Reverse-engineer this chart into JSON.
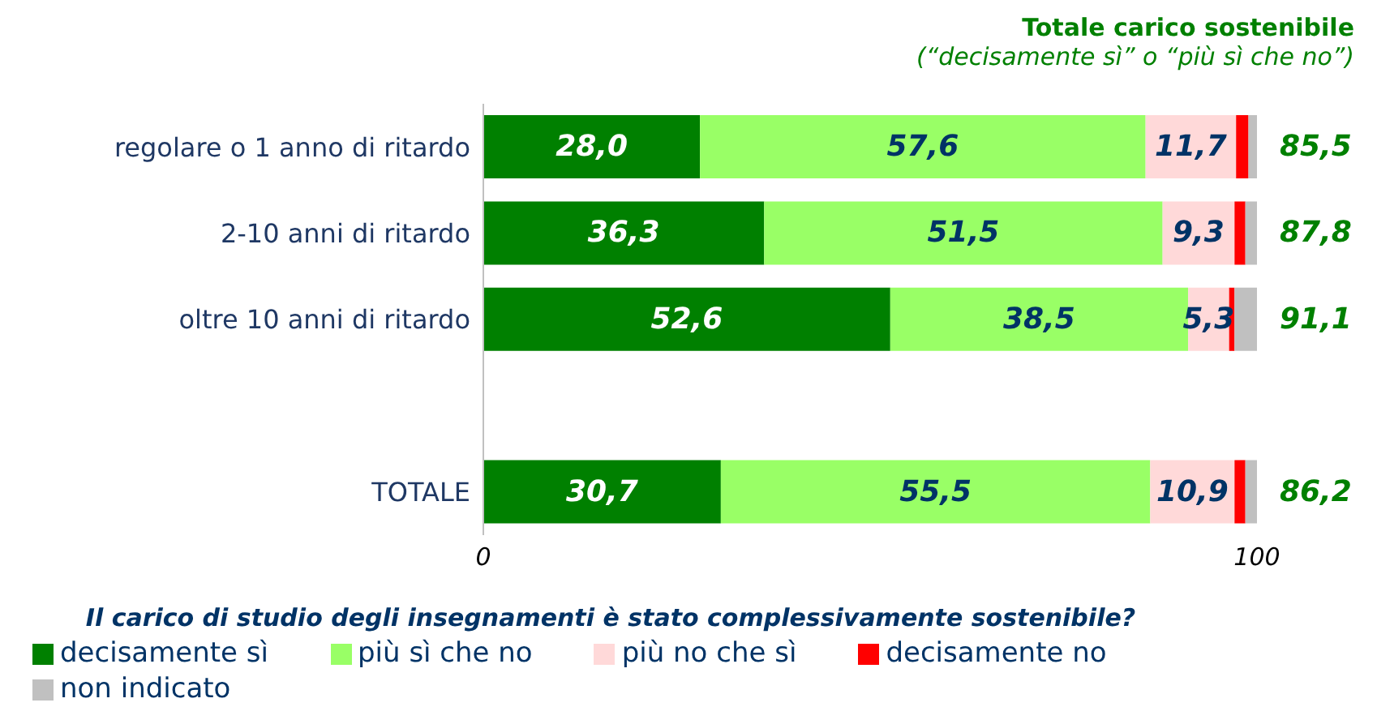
{
  "chart_data": {
    "type": "bar",
    "orientation": "horizontal",
    "stacked": true,
    "title": "Totale carico sostenibile",
    "subtitle": "(“decisamente sì” o “più sì che no”)",
    "xlabel": "Il carico di studio degli insegnamenti è stato complessivamente sostenibile?",
    "categories": [
      "regolare o 1 anno di ritardo",
      "2-10 anni di ritardo",
      "oltre 10 anni di ritardo",
      null,
      "TOTALE"
    ],
    "series": [
      {
        "name": "decisamente sì",
        "color": "#008000",
        "values": [
          28.0,
          36.3,
          52.6,
          null,
          30.7
        ],
        "value_labels": [
          "28,0",
          "36,3",
          "52,6",
          null,
          "30,7"
        ]
      },
      {
        "name": "più sì che no",
        "color": "#99ff66",
        "values": [
          57.6,
          51.5,
          38.5,
          null,
          55.5
        ],
        "value_labels": [
          "57,6",
          "51,5",
          "38,5",
          null,
          "55,5"
        ]
      },
      {
        "name": "più no che sì",
        "color": "#ffd9d9",
        "values": [
          11.7,
          9.3,
          5.3,
          null,
          10.9
        ],
        "value_labels": [
          "11,7",
          "9,3",
          "5,3",
          null,
          "10,9"
        ]
      },
      {
        "name": "decisamente no",
        "color": "#ff0000",
        "values": [
          1.6,
          1.4,
          0.7,
          null,
          1.4
        ]
      },
      {
        "name": "non indicato",
        "color": "#c0c0c0",
        "values": [
          1.1,
          1.5,
          2.9,
          null,
          1.5
        ]
      }
    ],
    "annotations": [
      "85,5",
      "87,8",
      "91,1",
      "86,2"
    ],
    "xlim": [
      0,
      100
    ],
    "xticks": [
      0,
      100
    ],
    "legend": "bottom"
  }
}
